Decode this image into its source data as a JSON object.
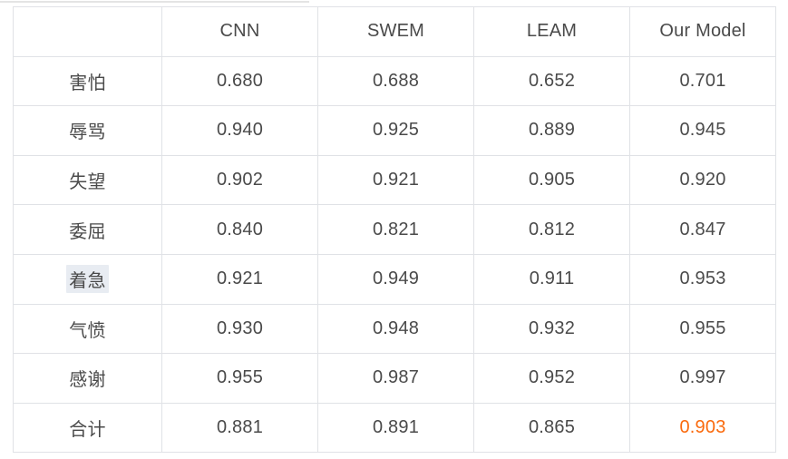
{
  "colors": {
    "accent": "#fa6a0d",
    "text": "#4a4a4a",
    "border": "#e0e2e6",
    "label_highlight_bg": "#e8ecf2"
  },
  "table": {
    "header": [
      "",
      "CNN",
      "SWEM",
      "LEAM",
      "Our Model"
    ],
    "rows": [
      {
        "label": "害怕",
        "values": [
          "0.680",
          "0.688",
          "0.652",
          "0.701"
        ]
      },
      {
        "label": "辱骂",
        "values": [
          "0.940",
          "0.925",
          "0.889",
          "0.945"
        ]
      },
      {
        "label": "失望",
        "values": [
          "0.902",
          "0.921",
          "0.905",
          "0.920"
        ]
      },
      {
        "label": "委屈",
        "values": [
          "0.840",
          "0.821",
          "0.812",
          "0.847"
        ]
      },
      {
        "label": "着急",
        "values": [
          "0.921",
          "0.949",
          "0.911",
          "0.953"
        ],
        "label_highlighted": true
      },
      {
        "label": "气愤",
        "values": [
          "0.930",
          "0.948",
          "0.932",
          "0.955"
        ]
      },
      {
        "label": "感谢",
        "values": [
          "0.955",
          "0.987",
          "0.952",
          "0.997"
        ]
      },
      {
        "label": "合计",
        "values": [
          "0.881",
          "0.891",
          "0.865",
          "0.903"
        ],
        "accent_value_index": 3
      }
    ]
  },
  "chart_data": {
    "type": "table",
    "title": "",
    "categories": [
      "害怕",
      "辱骂",
      "失望",
      "委屈",
      "着急",
      "气愤",
      "感谢",
      "合计"
    ],
    "series": [
      {
        "name": "CNN",
        "values": [
          0.68,
          0.94,
          0.902,
          0.84,
          0.921,
          0.93,
          0.955,
          0.881
        ]
      },
      {
        "name": "SWEM",
        "values": [
          0.688,
          0.925,
          0.921,
          0.821,
          0.949,
          0.948,
          0.987,
          0.891
        ]
      },
      {
        "name": "LEAM",
        "values": [
          0.652,
          0.889,
          0.905,
          0.812,
          0.911,
          0.932,
          0.952,
          0.865
        ]
      },
      {
        "name": "Our Model",
        "values": [
          0.701,
          0.945,
          0.92,
          0.847,
          0.953,
          0.955,
          0.997,
          0.903
        ]
      }
    ],
    "annotations": [
      "Value 0.903 (row 合计, column Our Model) is rendered in orange accent color"
    ]
  }
}
